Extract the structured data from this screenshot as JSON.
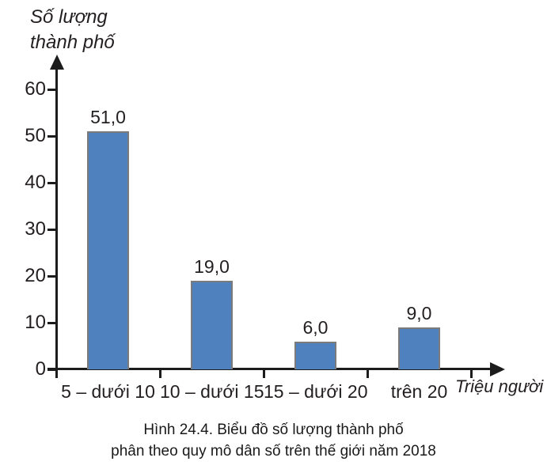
{
  "figure": {
    "y_axis_title_line1": "Số lượng",
    "y_axis_title_line2": "thành phố",
    "x_axis_title": "Triệu người",
    "caption_line1": "Hình 24.4. Biểu đồ số lượng thành phố",
    "caption_line2": "phân theo quy mô dân số trên thế giới năm 2018"
  },
  "colors": {
    "bar_fill": "#4e81bd",
    "bar_border": "#7b7b7b",
    "axis": "#1c1c1c",
    "text": "#231f20"
  },
  "chart_data": {
    "type": "bar",
    "categories": [
      "5 – dưới 10",
      "10 – dưới 15",
      "15 – dưới 20",
      "trên 20"
    ],
    "values": [
      51.0,
      19.0,
      6.0,
      9.0
    ],
    "value_labels": [
      "51,0",
      "19,0",
      "6,0",
      "9,0"
    ],
    "title": "Hình 24.4. Biểu đồ số lượng thành phố phân theo quy mô dân số trên thế giới năm 2018",
    "xlabel": "Triệu người",
    "ylabel": "Số lượng thành phố",
    "ylim": [
      0,
      60
    ],
    "yticks": [
      0,
      10,
      20,
      30,
      40,
      50,
      60
    ],
    "grid": false,
    "legend": false
  }
}
